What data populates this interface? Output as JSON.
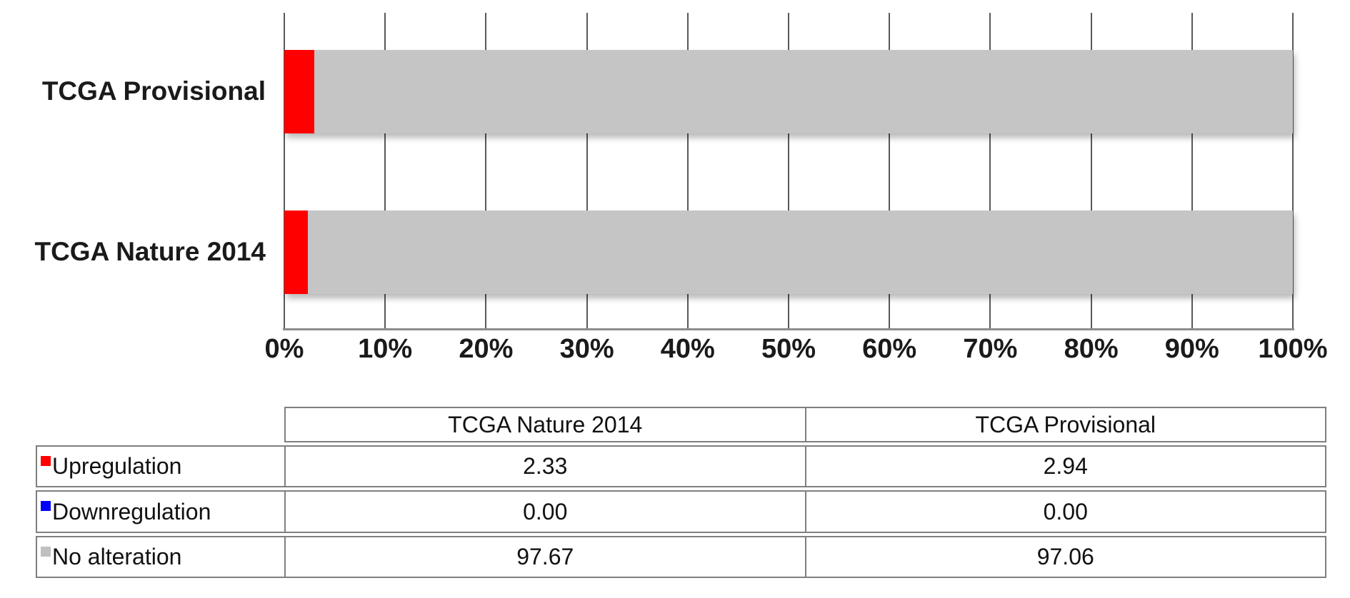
{
  "chart_data": {
    "type": "bar",
    "orientation": "horizontal",
    "stacked": true,
    "unit": "percent",
    "title": "",
    "xlabel": "",
    "ylabel": "",
    "categories": [
      "TCGA Provisional",
      "TCGA Nature 2014"
    ],
    "series": [
      {
        "name": "Upregulation",
        "color": "#ff0000",
        "values": [
          2.94,
          2.33
        ]
      },
      {
        "name": "Downregulation",
        "color": "#0000ff",
        "values": [
          0.0,
          0.0
        ]
      },
      {
        "name": "No alteration",
        "color": "#c5c5c5",
        "values": [
          97.06,
          97.67
        ]
      }
    ],
    "x_axis": {
      "min": 0,
      "max": 100,
      "tick_labels": [
        "0%",
        "10%",
        "20%",
        "30%",
        "40%",
        "50%",
        "60%",
        "70%",
        "80%",
        "90%",
        "100%"
      ]
    },
    "grid": "vertical gridlines on",
    "legend_position": "table-below"
  },
  "data_table": {
    "column_headers": [
      "TCGA Nature 2014",
      "TCGA Provisional"
    ],
    "rows": [
      {
        "label": "Upregulation",
        "swatch_color": "#ff0000",
        "values": [
          "2.33",
          "2.94"
        ]
      },
      {
        "label": "Downregulation",
        "swatch_color": "#0000ff",
        "values": [
          "0.00",
          "0.00"
        ]
      },
      {
        "label": "No alteration",
        "swatch_color": "#c0c0c0",
        "values": [
          "97.67",
          "97.06"
        ]
      }
    ]
  }
}
